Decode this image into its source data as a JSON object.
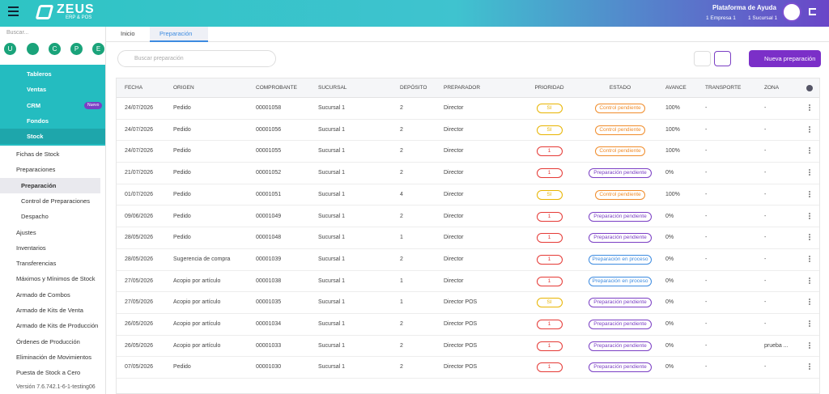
{
  "header": {
    "logo": "ZEUS",
    "logo_sub": "ERP & POS",
    "help": "Plataforma de Ayuda",
    "company": "1 Empresa 1",
    "branch": "1 Sucursal 1"
  },
  "sidebar": {
    "search_placeholder": "Buscar...",
    "users": [
      "U",
      "C",
      "P",
      "E"
    ],
    "menu": [
      {
        "label": "Tableros"
      },
      {
        "label": "Ventas"
      },
      {
        "label": "CRM",
        "badge": "Nuevo"
      },
      {
        "label": "Fondos"
      },
      {
        "label": "Stock"
      }
    ],
    "submenu": [
      "Fichas de Stock",
      "Preparaciones",
      "Preparación",
      "Control de Preparaciones",
      "Despacho",
      "Ajustes",
      "Inventarios",
      "Transferencias",
      "Máximos y Mínimos de Stock",
      "Armado de Combos",
      "Armado de Kits de Venta",
      "Armado de Kits de Producción",
      "Órdenes de Producción",
      "Eliminación de Movimientos",
      "Puesta de Stock a Cero"
    ],
    "version": "Versión 7.6.742.1-6-1-testing06"
  },
  "tabs": [
    "Inicio",
    "Preparación"
  ],
  "toolbar": {
    "search_placeholder": "Buscar preparación",
    "new_button": "Nueva preparación"
  },
  "table": {
    "columns": [
      "FECHA",
      "ORIGEN",
      "COMPROBANTE",
      "SUCURSAL",
      "DEPÓSITO",
      "PREPARADOR",
      "PRIORIDAD",
      "ESTADO",
      "AVANCE",
      "TRANSPORTE",
      "ZONA"
    ],
    "rows": [
      {
        "cells": [
          "24/07/2026",
          "Pedido",
          "00001058",
          "Sucursal 1",
          "2",
          "Director",
          "SI",
          "Control pendiente",
          "100%",
          "-",
          "-"
        ],
        "priority_color": "#e8b400",
        "status_color": "#f08c2a"
      },
      {
        "cells": [
          "24/07/2026",
          "Pedido",
          "00001056",
          "Sucursal 1",
          "2",
          "Director",
          "SI",
          "Control pendiente",
          "100%",
          "-",
          "-"
        ],
        "priority_color": "#e8b400",
        "status_color": "#f08c2a"
      },
      {
        "cells": [
          "24/07/2026",
          "Pedido",
          "00001055",
          "Sucursal 1",
          "2",
          "Director",
          "1",
          "Control pendiente",
          "100%",
          "-",
          "-"
        ],
        "priority_color": "#e53935",
        "status_color": "#f08c2a"
      },
      {
        "cells": [
          "21/07/2026",
          "Pedido",
          "00001052",
          "Sucursal 1",
          "2",
          "Director",
          "1",
          "Preparación pendiente",
          "0%",
          "-",
          "-"
        ],
        "priority_color": "#e53935",
        "status_color": "#7b3fc4"
      },
      {
        "cells": [
          "01/07/2026",
          "Pedido",
          "00001051",
          "Sucursal 1",
          "4",
          "Director",
          "SI",
          "Control pendiente",
          "100%",
          "-",
          "-"
        ],
        "priority_color": "#e8b400",
        "status_color": "#f08c2a"
      },
      {
        "cells": [
          "09/06/2026",
          "Pedido",
          "00001049",
          "Sucursal 1",
          "2",
          "Director",
          "1",
          "Preparación pendiente",
          "0%",
          "-",
          "-"
        ],
        "priority_color": "#e53935",
        "status_color": "#7b3fc4"
      },
      {
        "cells": [
          "28/05/2026",
          "Pedido",
          "00001048",
          "Sucursal 1",
          "1",
          "Director",
          "1",
          "Preparación pendiente",
          "0%",
          "-",
          "-"
        ],
        "priority_color": "#e53935",
        "status_color": "#7b3fc4"
      },
      {
        "cells": [
          "28/05/2026",
          "Sugerencia de compra",
          "00001039",
          "Sucursal 1",
          "2",
          "Director",
          "1",
          "Preparación en proceso",
          "0%",
          "-",
          "-"
        ],
        "priority_color": "#e53935",
        "status_color": "#3d8be0"
      },
      {
        "cells": [
          "27/05/2026",
          "Acopio por artículo",
          "00001038",
          "Sucursal 1",
          "1",
          "Director",
          "1",
          "Preparación en proceso",
          "0%",
          "-",
          "-"
        ],
        "priority_color": "#e53935",
        "status_color": "#3d8be0"
      },
      {
        "cells": [
          "27/05/2026",
          "Acopio por artículo",
          "00001035",
          "Sucursal 1",
          "1",
          "Director POS",
          "SI",
          "Preparación pendiente",
          "0%",
          "-",
          "-"
        ],
        "priority_color": "#e8b400",
        "status_color": "#7b3fc4"
      },
      {
        "cells": [
          "26/05/2026",
          "Acopio por artículo",
          "00001034",
          "Sucursal 1",
          "2",
          "Director POS",
          "1",
          "Preparación pendiente",
          "0%",
          "-",
          "-"
        ],
        "priority_color": "#e53935",
        "status_color": "#7b3fc4"
      },
      {
        "cells": [
          "26/05/2026",
          "Acopio por artículo",
          "00001033",
          "Sucursal 1",
          "2",
          "Director POS",
          "1",
          "Preparación pendiente",
          "0%",
          "-",
          "prueba ..."
        ],
        "priority_color": "#e53935",
        "status_color": "#7b3fc4"
      },
      {
        "cells": [
          "07/05/2026",
          "Pedido",
          "00001030",
          "Sucursal 1",
          "2",
          "Director POS",
          "1",
          "Preparación pendiente",
          "0%",
          "-",
          "-"
        ],
        "priority_color": "#e53935",
        "status_color": "#7b3fc4"
      }
    ]
  }
}
